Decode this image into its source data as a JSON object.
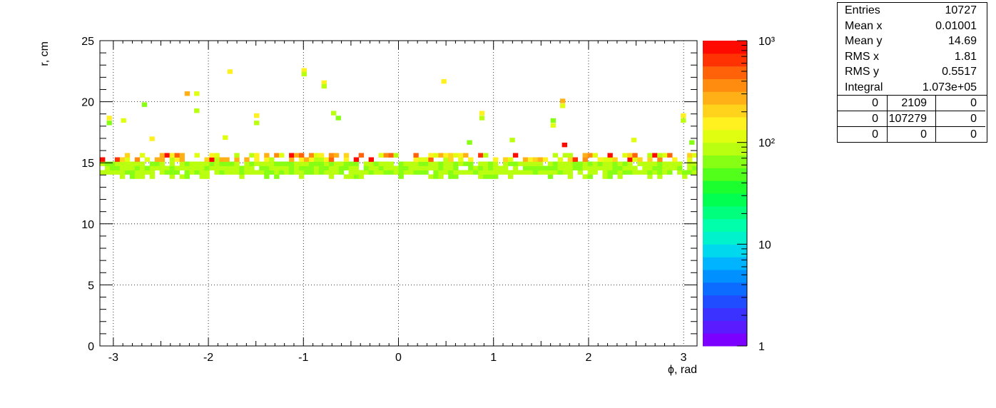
{
  "chart_data": {
    "type": "heatmap",
    "title": "",
    "xlabel": "ϕ, rad",
    "ylabel": "r, cm",
    "xlim": [
      -3.1416,
      3.1416
    ],
    "ylim": [
      0,
      25
    ],
    "x_ticks": [
      "-3",
      "-2",
      "-1",
      "0",
      "1",
      "2",
      "3"
    ],
    "y_ticks": [
      "0",
      "5",
      "10",
      "15",
      "20",
      "25"
    ],
    "grid": true,
    "color_scale": "log",
    "z_range": [
      1,
      1000
    ],
    "z_ticks": [
      "1",
      "10",
      "10²",
      "10³"
    ],
    "palette": [
      "#7b00ff",
      "#5a1bff",
      "#3b32ff",
      "#1f4dff",
      "#0c6cff",
      "#0090ff",
      "#00b4ff",
      "#00d8ee",
      "#00f2cc",
      "#00ffaa",
      "#00ff7c",
      "#00ff50",
      "#1cff2e",
      "#52ff1a",
      "#86ff14",
      "#baff10",
      "#e0ff10",
      "#fff020",
      "#ffd21c",
      "#ffb016",
      "#ff8c0e",
      "#ff6208",
      "#ff3204",
      "#ff0a00"
    ],
    "band": {
      "r_center_low": 14.2,
      "r_center_high": 15.1,
      "typical_low": 60,
      "typical_high": 250,
      "peak": 1000
    },
    "outliers": [
      {
        "x": -3.07,
        "y": 18.1,
        "z": 60
      },
      {
        "x": -3.07,
        "y": 18.5,
        "z": 150
      },
      {
        "x": -2.92,
        "y": 18.3,
        "z": 120
      },
      {
        "x": -2.7,
        "y": 19.6,
        "z": 60
      },
      {
        "x": -2.62,
        "y": 16.8,
        "z": 150
      },
      {
        "x": -2.25,
        "y": 20.5,
        "z": 300
      },
      {
        "x": -2.15,
        "y": 20.5,
        "z": 100
      },
      {
        "x": -2.15,
        "y": 19.1,
        "z": 80
      },
      {
        "x": -1.8,
        "y": 22.3,
        "z": 150
      },
      {
        "x": -1.85,
        "y": 16.9,
        "z": 100
      },
      {
        "x": -1.52,
        "y": 18.7,
        "z": 150
      },
      {
        "x": -1.52,
        "y": 18.1,
        "z": 80
      },
      {
        "x": -1.02,
        "y": 22.4,
        "z": 150
      },
      {
        "x": -1.02,
        "y": 22.1,
        "z": 80
      },
      {
        "x": -0.81,
        "y": 21.4,
        "z": 150
      },
      {
        "x": -0.81,
        "y": 21.1,
        "z": 80
      },
      {
        "x": -0.71,
        "y": 18.9,
        "z": 80
      },
      {
        "x": -0.66,
        "y": 18.5,
        "z": 70
      },
      {
        "x": 0.45,
        "y": 21.5,
        "z": 150
      },
      {
        "x": 0.85,
        "y": 18.9,
        "z": 150
      },
      {
        "x": 0.85,
        "y": 18.5,
        "z": 80
      },
      {
        "x": 0.72,
        "y": 16.5,
        "z": 60
      },
      {
        "x": 1.17,
        "y": 16.7,
        "z": 80
      },
      {
        "x": 1.6,
        "y": 17.9,
        "z": 100
      },
      {
        "x": 1.6,
        "y": 18.3,
        "z": 70
      },
      {
        "x": 1.7,
        "y": 19.9,
        "z": 300
      },
      {
        "x": 1.7,
        "y": 19.5,
        "z": 120
      },
      {
        "x": 1.72,
        "y": 16.3,
        "z": 800
      },
      {
        "x": 2.45,
        "y": 16.7,
        "z": 100
      },
      {
        "x": 2.97,
        "y": 18.7,
        "z": 150
      },
      {
        "x": 2.97,
        "y": 18.3,
        "z": 80
      },
      {
        "x": 3.06,
        "y": 16.5,
        "z": 70
      }
    ]
  },
  "stats": {
    "rows": [
      {
        "label": "Entries",
        "value": "10727"
      },
      {
        "label": "Mean x",
        "value": "0.01001"
      },
      {
        "label": "Mean y",
        "value": "14.69"
      },
      {
        "label": "RMS x",
        "value": "1.81"
      },
      {
        "label": "RMS y",
        "value": "0.5517"
      },
      {
        "label": "Integral",
        "value": "1.073e+05"
      }
    ],
    "grid": [
      [
        "0",
        "2109",
        "0"
      ],
      [
        "0",
        "107279",
        "0"
      ],
      [
        "0",
        "0",
        "0"
      ]
    ]
  }
}
